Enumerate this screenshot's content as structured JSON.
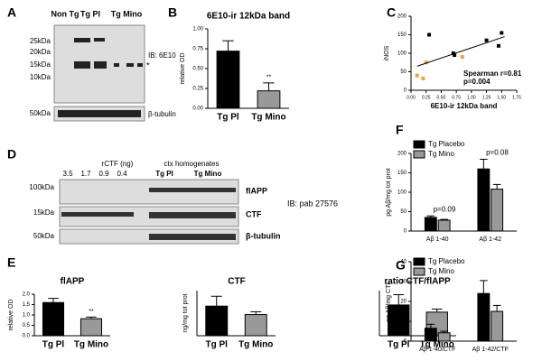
{
  "blot_a": {
    "panel": "A",
    "columns": [
      "Non Tg",
      "Tg Pl",
      "Tg Mino"
    ],
    "markers": [
      "25kDa",
      "20kDa",
      "15kDa",
      "10kDa",
      "50kDa"
    ],
    "antibody": "IB: 6E10",
    "asterisk": "*",
    "loading": "β-tubulin"
  },
  "blot_d": {
    "panel": "D",
    "standard": "rCTF (ng)",
    "amounts": [
      "3.5",
      "1.7",
      "0.9",
      "0.4"
    ],
    "homogenates": "ctx homogenates",
    "groups": [
      "Tg Pl",
      "Tg Mino"
    ],
    "markers": [
      "100kDa",
      "15kDa",
      "50kDa"
    ],
    "bands": [
      "flAPP",
      "CTF",
      "β-tubulin"
    ],
    "antibody": "IB: pab 27576"
  },
  "chart_data": [
    {
      "type": "bar",
      "panel": "B",
      "title": "6E10-ir 12kDa band",
      "ylabel": "relative OD",
      "categories": [
        "Tg Pl",
        "Tg Mino"
      ],
      "values": [
        0.72,
        0.22
      ],
      "errors": [
        0.13,
        0.1
      ],
      "colors": [
        "#000000",
        "#999999"
      ],
      "ylim": [
        0,
        1
      ],
      "yticks": [
        {
          "value": 0,
          "label": "0.00"
        },
        {
          "value": 0.25,
          "label": "0.25"
        },
        {
          "value": 0.5,
          "label": "0.50"
        },
        {
          "value": 0.75,
          "label": "0.75"
        },
        {
          "value": 1,
          "label": "1.00"
        }
      ],
      "annotation": "**"
    },
    {
      "type": "scatter",
      "panel": "C",
      "xlabel": "6E10-ir 12kDa band",
      "ylabel": "iNOS",
      "series": [
        {
          "color": "#000000",
          "x": [
            0.3,
            0.7,
            0.72,
            1.25,
            1.45,
            1.5
          ],
          "values": [
            150,
            100,
            95,
            135,
            120,
            155
          ]
        },
        {
          "color": "#f0a030",
          "x": [
            0.1,
            0.2,
            0.25,
            0.85
          ],
          "values": [
            40,
            32,
            75,
            90
          ]
        }
      ],
      "fit": {
        "x": [
          0.1,
          1.55
        ],
        "values": [
          65,
          145
        ]
      },
      "xlim": [
        0,
        1.75
      ],
      "ylim": [
        0,
        200
      ],
      "xticks": [
        {
          "value": 0,
          "label": "0.00"
        },
        {
          "value": 0.25,
          "label": "0.25"
        },
        {
          "value": 0.5,
          "label": "0.50"
        },
        {
          "value": 0.75,
          "label": "0.75"
        },
        {
          "value": 1,
          "label": "1.00"
        },
        {
          "value": 1.25,
          "label": "1.25"
        },
        {
          "value": 1.5,
          "label": "1.50"
        },
        {
          "value": 1.75,
          "label": "1.75"
        }
      ],
      "yticks": [
        0,
        50,
        100,
        150,
        200
      ],
      "annotations": [
        "Spearman r=0.81",
        "p=0.004"
      ]
    },
    {
      "type": "bar",
      "panel": "E",
      "title": "flAPP",
      "ylabel": "relative OD",
      "categories": [
        "Tg Pl",
        "Tg Mino"
      ],
      "values": [
        1.6,
        0.82
      ],
      "errors": [
        0.2,
        0.08
      ],
      "colors": [
        "#000000",
        "#999999"
      ],
      "ylim": [
        0,
        2
      ],
      "yticks": [
        {
          "value": 0,
          "label": "0.0"
        },
        {
          "value": 0.5,
          "label": "0.5"
        },
        {
          "value": 1,
          "label": "1.0"
        },
        {
          "value": 1.5,
          "label": "1.5"
        },
        {
          "value": 2,
          "label": "2.0"
        }
      ],
      "annotation": "**"
    },
    {
      "type": "bar",
      "title": "CTF",
      "ylabel": "ng/mg tot prot",
      "categories": [
        "Tg Pl",
        "Tg Mino"
      ],
      "values": [
        1.05,
        0.75
      ],
      "errors": [
        0.35,
        0.1
      ],
      "colors": [
        "#000000",
        "#999999"
      ],
      "ylim": [
        0,
        1.6
      ]
    },
    {
      "type": "bar",
      "title": "ratio CTF/flAPP",
      "categories": [
        "Tg Pl",
        "Tg Mino"
      ],
      "values": [
        0.15,
        0.115
      ],
      "errors": [
        0.05,
        0.015
      ],
      "colors": [
        "#000000",
        "#999999"
      ],
      "ylim": [
        0,
        0.22
      ]
    },
    {
      "type": "grouped_bar",
      "panel": "F",
      "ylabel": "pg Aβ/mg tot prot",
      "categories": [
        "Aβ 1-40",
        "Aβ 1-42"
      ],
      "series": [
        {
          "name": "Tg Placebo",
          "color": "#000000",
          "values": [
            35,
            160
          ],
          "errors": [
            4,
            25
          ]
        },
        {
          "name": "Tg Mino",
          "color": "#999999",
          "values": [
            28,
            108
          ],
          "errors": [
            2,
            12
          ]
        }
      ],
      "ylim": [
        0,
        200
      ],
      "yticks": [
        0,
        50,
        100,
        150,
        200
      ],
      "annotations": [
        "p=0.09",
        "p=0.08"
      ]
    },
    {
      "type": "grouped_bar",
      "panel": "G",
      "ylabel": "pg Aβ/mg CTF",
      "categories": [
        "Aβ 1-40/CTF",
        "Aβ 1-42/CTF"
      ],
      "series": [
        {
          "name": "Tg Placebo",
          "color": "#000000",
          "values": [
            6.5,
            24
          ],
          "errors": [
            2,
            6.5
          ]
        },
        {
          "name": "Tg Mino",
          "color": "#999999",
          "values": [
            4.2,
            15
          ],
          "errors": [
            0.8,
            3
          ]
        }
      ],
      "ylim": [
        0,
        40
      ],
      "yticks": [
        0,
        10,
        20,
        30,
        40
      ]
    }
  ]
}
